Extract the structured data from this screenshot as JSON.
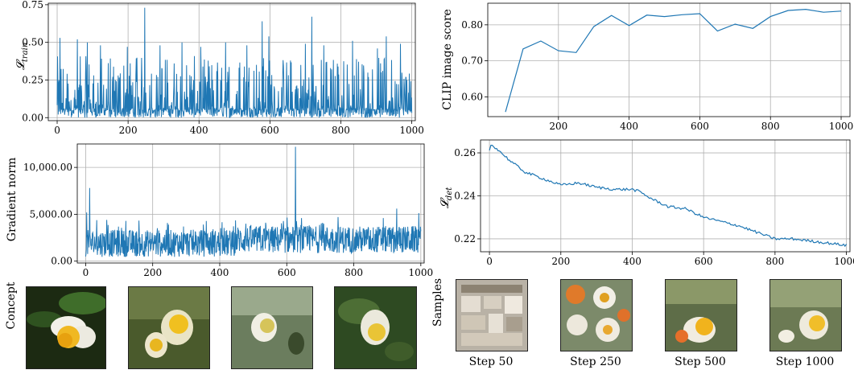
{
  "chart_data": [
    {
      "id": "train_loss",
      "type": "line",
      "ylabel": "𝓛",
      "ylabel_sub": "train",
      "xlim": [
        -25,
        1010
      ],
      "ylim": [
        -0.02,
        0.76
      ],
      "xticks": [
        0,
        200,
        400,
        600,
        800,
        1000
      ],
      "yticks": [
        0.0,
        0.25,
        0.5,
        0.75
      ],
      "ytick_labels": [
        "0.00",
        "0.25",
        "0.50",
        "0.75"
      ],
      "grid": true,
      "color": "#1f77b4",
      "spikes": [
        [
          8,
          0.53
        ],
        [
          57,
          0.52
        ],
        [
          85,
          0.5
        ],
        [
          122,
          0.48
        ],
        [
          198,
          0.47
        ],
        [
          247,
          0.73
        ],
        [
          290,
          0.48
        ],
        [
          352,
          0.5
        ],
        [
          405,
          0.47
        ],
        [
          475,
          0.5
        ],
        [
          535,
          0.48
        ],
        [
          578,
          0.64
        ],
        [
          597,
          0.54
        ],
        [
          700,
          0.49
        ],
        [
          718,
          0.67
        ],
        [
          752,
          0.48
        ],
        [
          833,
          0.51
        ],
        [
          903,
          0.46
        ],
        [
          928,
          0.54
        ],
        [
          968,
          0.49
        ]
      ]
    },
    {
      "id": "grad_norm",
      "type": "line",
      "ylabel": "Gradient norm",
      "xlim": [
        -25,
        1010
      ],
      "ylim": [
        -200,
        12500
      ],
      "xticks": [
        0,
        200,
        400,
        600,
        800,
        1000
      ],
      "yticks": [
        0,
        5000,
        10000
      ],
      "ytick_labels": [
        "0.00",
        "5,000.00",
        "10,000.00"
      ],
      "grid": true,
      "color": "#1f77b4",
      "spikes": [
        [
          3,
          5200
        ],
        [
          12,
          7800
        ],
        [
          63,
          4400
        ],
        [
          120,
          4300
        ],
        [
          247,
          3900
        ],
        [
          292,
          3700
        ],
        [
          351,
          3900
        ],
        [
          478,
          4000
        ],
        [
          537,
          4100
        ],
        [
          626,
          12200
        ],
        [
          644,
          4600
        ],
        [
          710,
          4000
        ],
        [
          753,
          4700
        ],
        [
          888,
          4600
        ],
        [
          928,
          5600
        ],
        [
          985,
          3600
        ]
      ]
    },
    {
      "id": "clip_score",
      "type": "line",
      "ylabel": "CLIP image score",
      "xlim": [
        0,
        1025
      ],
      "ylim": [
        0.545,
        0.86
      ],
      "xticks": [
        200,
        400,
        600,
        800,
        1000
      ],
      "yticks": [
        0.6,
        0.7,
        0.8
      ],
      "ytick_labels": [
        "0.60",
        "0.70",
        "0.80"
      ],
      "grid": true,
      "color": "#1f77b4",
      "x": [
        50,
        100,
        150,
        200,
        250,
        300,
        350,
        400,
        450,
        500,
        550,
        600,
        650,
        700,
        750,
        800,
        850,
        900,
        950,
        1000
      ],
      "y": [
        0.558,
        0.733,
        0.755,
        0.728,
        0.723,
        0.795,
        0.826,
        0.798,
        0.827,
        0.823,
        0.828,
        0.831,
        0.783,
        0.802,
        0.79,
        0.823,
        0.84,
        0.843,
        0.835,
        0.838
      ]
    },
    {
      "id": "det_loss",
      "type": "line",
      "ylabel": "𝓛",
      "ylabel_sub": "det",
      "xlim": [
        -25,
        1010
      ],
      "ylim": [
        0.214,
        0.266
      ],
      "xticks": [
        0,
        200,
        400,
        600,
        800,
        1000
      ],
      "yticks": [
        0.22,
        0.24,
        0.26
      ],
      "ytick_labels": [
        "0.22",
        "0.24",
        "0.26"
      ],
      "grid": true,
      "color": "#1f77b4",
      "x": [
        0,
        5,
        20,
        60,
        100,
        150,
        200,
        250,
        300,
        350,
        400,
        420,
        450,
        500,
        550,
        600,
        650,
        700,
        750,
        800,
        850,
        900,
        950,
        1000
      ],
      "y": [
        0.261,
        0.264,
        0.262,
        0.256,
        0.251,
        0.248,
        0.245,
        0.246,
        0.244,
        0.243,
        0.243,
        0.242,
        0.239,
        0.235,
        0.234,
        0.23,
        0.228,
        0.226,
        0.223,
        0.22,
        0.22,
        0.219,
        0.218,
        0.217
      ]
    }
  ],
  "samples": {
    "concept_label": "Concept",
    "samples_label": "Samples",
    "captions": [
      "Step 50",
      "Step 250",
      "Step 500",
      "Step 1000"
    ]
  }
}
